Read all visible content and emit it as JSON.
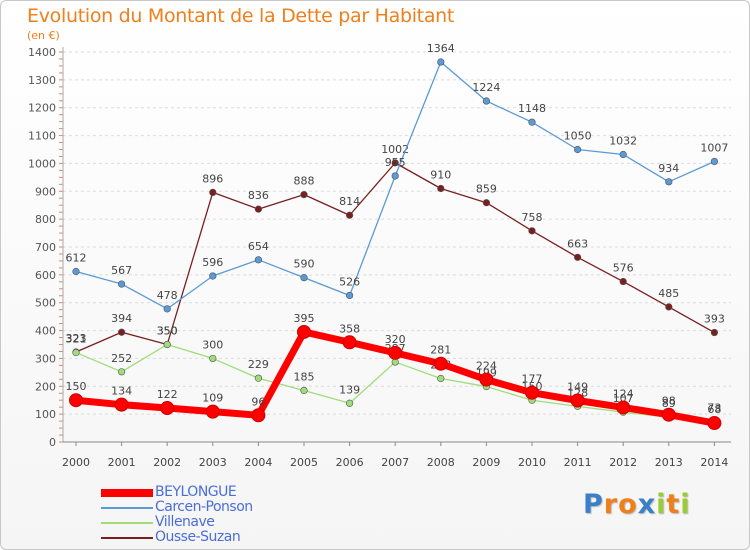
{
  "chart_data": {
    "type": "line",
    "title": "Evolution du Montant de la Dette par Habitant",
    "subtitle": "(en €)",
    "x": [
      "2000",
      "2001",
      "2002",
      "2003",
      "2004",
      "2005",
      "2006",
      "2007",
      "2008",
      "2009",
      "2010",
      "2011",
      "2012",
      "2013",
      "2014"
    ],
    "yticks": [
      "0",
      "100",
      "200",
      "300",
      "400",
      "500",
      "600",
      "700",
      "800",
      "900",
      "1000",
      "1100",
      "1200",
      "1300",
      "1400"
    ],
    "ylim": [
      0,
      1400
    ],
    "grid": "horizontal",
    "legend_position": "bottom-left",
    "series": [
      {
        "name": "Ousse-Suzan",
        "color": "#7a1f1f",
        "values": [
          323,
          394,
          350,
          896,
          836,
          888,
          814,
          1002,
          910,
          859,
          758,
          663,
          576,
          485,
          393
        ]
      },
      {
        "name": "Carcen-Ponson",
        "color": "#5a9ad6",
        "values": [
          612,
          567,
          478,
          596,
          654,
          590,
          526,
          955,
          1364,
          1224,
          1148,
          1050,
          1032,
          934,
          1007
        ]
      },
      {
        "name": "Villenave",
        "color": "#a0dc7a",
        "values": [
          321,
          252,
          350,
          300,
          229,
          185,
          139,
          287,
          228,
          199,
          150,
          128,
          107,
          89,
          73
        ]
      },
      {
        "name": "BEYLONGUE",
        "color": "#ff0000",
        "values": [
          150,
          134,
          122,
          109,
          96,
          395,
          358,
          320,
          281,
          224,
          177,
          149,
          124,
          98,
          68
        ]
      }
    ]
  },
  "legend": [
    {
      "label": "BEYLONGUE",
      "color": "#ff0000",
      "thick": true,
      "text_color": "#4a6ed8"
    },
    {
      "label": "Carcen-Ponson",
      "color": "#5a9ad6",
      "thick": false,
      "text_color": "#4a6ed8"
    },
    {
      "label": "Villenave",
      "color": "#a0dc7a",
      "thick": false,
      "text_color": "#4a6ed8"
    },
    {
      "label": "Ousse-Suzan",
      "color": "#7a1f1f",
      "thick": false,
      "text_color": "#4a6ed8"
    }
  ],
  "logo": {
    "text": "Proxiti",
    "letters": [
      {
        "ch": "P",
        "color": "#3a7fc8"
      },
      {
        "ch": "r",
        "color": "#ef7f1a"
      },
      {
        "ch": "o",
        "color": "#ef7f1a"
      },
      {
        "ch": "x",
        "color": "#3a7fc8"
      },
      {
        "ch": "i",
        "color": "#9acd32"
      },
      {
        "ch": "t",
        "color": "#ef7f1a"
      },
      {
        "ch": "i",
        "color": "#9acd32"
      }
    ]
  }
}
